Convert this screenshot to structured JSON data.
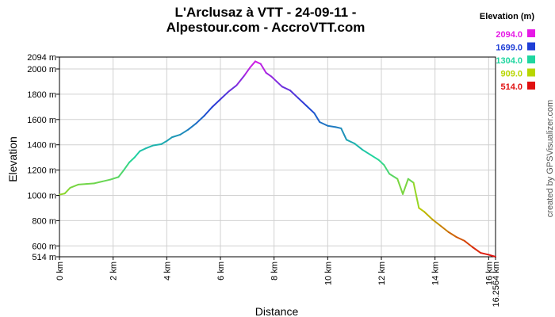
{
  "chart_data": {
    "type": "line",
    "title_line1": "L'Arclusaz à VTT - 24-09-11 -",
    "title_line2": "Alpestour.com - AccroVTT.com",
    "xlabel": "Distance",
    "ylabel": "Elevation",
    "xlim": [
      0,
      16.2564
    ],
    "ylim": [
      514,
      2094
    ],
    "x_ticks": [
      "0 km",
      "2 km",
      "4 km",
      "6 km",
      "8 km",
      "10 km",
      "12 km",
      "14 km",
      "16 km",
      "16.2564 km"
    ],
    "y_ticks": [
      "514 m",
      "600 m",
      "800 m",
      "1000 m",
      "1200 m",
      "1400 m",
      "1600 m",
      "1800 m",
      "2000 m",
      "2094 m"
    ],
    "grid": true,
    "legend": {
      "title": "Elevation (m)",
      "position": "top-right",
      "entries": [
        {
          "label": "2094.0",
          "color": "#e619e6"
        },
        {
          "label": "1699.0",
          "color": "#1f3fd6"
        },
        {
          "label": "1304.0",
          "color": "#1fd6a0"
        },
        {
          "label": "909.0",
          "color": "#b8d600"
        },
        {
          "label": "514.0",
          "color": "#e01010"
        }
      ]
    },
    "x": [
      0,
      0.2,
      0.4,
      0.7,
      1.0,
      1.3,
      1.6,
      1.9,
      2.2,
      2.4,
      2.6,
      2.8,
      3.0,
      3.2,
      3.5,
      3.8,
      4.0,
      4.2,
      4.5,
      4.8,
      5.1,
      5.4,
      5.7,
      6.0,
      6.3,
      6.6,
      6.9,
      7.1,
      7.3,
      7.5,
      7.7,
      7.9,
      8.1,
      8.3,
      8.6,
      8.9,
      9.2,
      9.5,
      9.7,
      10.0,
      10.3,
      10.5,
      10.7,
      11.0,
      11.3,
      11.6,
      11.9,
      12.1,
      12.3,
      12.6,
      12.8,
      13.0,
      13.2,
      13.4,
      13.6,
      13.9,
      14.2,
      14.5,
      14.8,
      15.1,
      15.4,
      15.7,
      16.0,
      16.2564
    ],
    "values": [
      1005,
      1015,
      1060,
      1085,
      1090,
      1095,
      1110,
      1125,
      1145,
      1200,
      1260,
      1300,
      1350,
      1370,
      1395,
      1405,
      1430,
      1460,
      1480,
      1520,
      1570,
      1630,
      1700,
      1760,
      1820,
      1870,
      1950,
      2010,
      2060,
      2040,
      1970,
      1940,
      1900,
      1860,
      1830,
      1770,
      1710,
      1650,
      1580,
      1550,
      1540,
      1530,
      1440,
      1410,
      1360,
      1320,
      1280,
      1240,
      1170,
      1130,
      1010,
      1130,
      1100,
      900,
      870,
      810,
      760,
      710,
      670,
      640,
      590,
      545,
      530,
      514
    ]
  }
}
